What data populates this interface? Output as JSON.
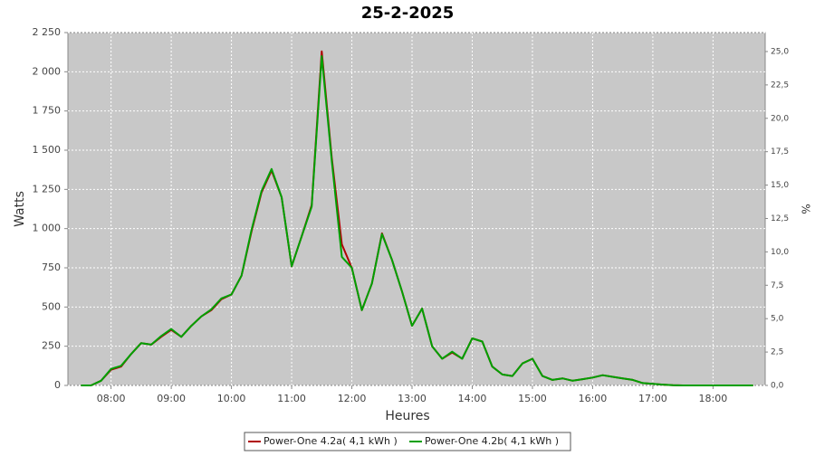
{
  "chart_data": {
    "type": "line",
    "title": "25-2-2025",
    "x_label": "Heures",
    "y_label": "Watts",
    "y2_label": "%",
    "x": [
      "07:30",
      "07:40",
      "07:50",
      "08:00",
      "08:10",
      "08:20",
      "08:30",
      "08:40",
      "08:50",
      "09:00",
      "09:10",
      "09:20",
      "09:30",
      "09:40",
      "09:50",
      "10:00",
      "10:10",
      "10:20",
      "10:30",
      "10:40",
      "10:50",
      "11:00",
      "11:10",
      "11:20",
      "11:30",
      "11:40",
      "11:50",
      "12:00",
      "12:10",
      "12:20",
      "12:30",
      "12:40",
      "12:50",
      "13:00",
      "13:10",
      "13:20",
      "13:30",
      "13:40",
      "13:50",
      "14:00",
      "14:10",
      "14:20",
      "14:30",
      "14:40",
      "14:50",
      "15:00",
      "15:10",
      "15:20",
      "15:30",
      "15:40",
      "15:50",
      "16:00",
      "16:10",
      "16:20",
      "16:30",
      "16:40",
      "16:50",
      "17:00",
      "17:10",
      "17:20",
      "17:30",
      "17:40",
      "17:50",
      "18:00",
      "18:10",
      "18:20",
      "18:30",
      "18:40"
    ],
    "series": [
      {
        "name": "Power-One 4.2a( 4,1 kWh )",
        "color": "#b00000",
        "values": [
          0,
          0,
          30,
          100,
          120,
          200,
          270,
          260,
          310,
          355,
          310,
          380,
          440,
          480,
          550,
          580,
          700,
          980,
          1230,
          1370,
          1200,
          760,
          950,
          1150,
          2130,
          1450,
          900,
          750,
          480,
          650,
          970,
          800,
          600,
          380,
          490,
          250,
          170,
          210,
          170,
          300,
          280,
          120,
          70,
          60,
          140,
          170,
          60,
          35,
          45,
          30,
          40,
          50,
          65,
          55,
          45,
          35,
          15,
          10,
          5,
          2,
          0,
          0,
          0,
          0,
          0,
          0,
          0,
          0
        ]
      },
      {
        "name": "Power-One 4.2b( 4,1 kWh )",
        "color": "#00a000",
        "values": [
          0,
          0,
          30,
          105,
          125,
          200,
          270,
          260,
          315,
          360,
          310,
          380,
          440,
          485,
          555,
          580,
          700,
          990,
          1240,
          1380,
          1200,
          760,
          950,
          1140,
          2100,
          1430,
          820,
          750,
          480,
          650,
          965,
          800,
          600,
          380,
          490,
          250,
          170,
          215,
          170,
          300,
          280,
          120,
          70,
          60,
          140,
          170,
          60,
          35,
          45,
          30,
          40,
          50,
          65,
          55,
          45,
          35,
          15,
          10,
          5,
          2,
          0,
          0,
          0,
          0,
          0,
          0,
          0,
          0
        ]
      }
    ],
    "xlim": [
      "07:17",
      "18:52"
    ],
    "xticks": [
      "08:00",
      "09:00",
      "10:00",
      "11:00",
      "12:00",
      "13:00",
      "14:00",
      "15:00",
      "16:00",
      "17:00",
      "18:00"
    ],
    "ylim": [
      0,
      2250
    ],
    "yticks": [
      0,
      250,
      500,
      750,
      {
        "value": 1000,
        "label": "1 000"
      },
      {
        "value": 1250,
        "label": "1 250"
      },
      {
        "value": 1500,
        "label": "1 500"
      },
      {
        "value": 1750,
        "label": "1 750"
      },
      {
        "value": 2000,
        "label": "2 000"
      },
      {
        "value": 2250,
        "label": "2 250"
      }
    ],
    "y2lim": [
      0,
      26.42
    ],
    "y2ticks": [
      {
        "value": 0,
        "label": "0,0"
      },
      {
        "value": 2.5,
        "label": "2,5"
      },
      {
        "value": 5,
        "label": "5,0"
      },
      {
        "value": 7.5,
        "label": "7,5"
      },
      {
        "value": 10,
        "label": "10,0"
      },
      {
        "value": 12.5,
        "label": "12,5"
      },
      {
        "value": 15,
        "label": "15,0"
      },
      {
        "value": 17.5,
        "label": "17,5"
      },
      {
        "value": 20,
        "label": "20,0"
      },
      {
        "value": 22.5,
        "label": "22,5"
      },
      {
        "value": 25,
        "label": "25,0"
      }
    ],
    "grid": true
  }
}
